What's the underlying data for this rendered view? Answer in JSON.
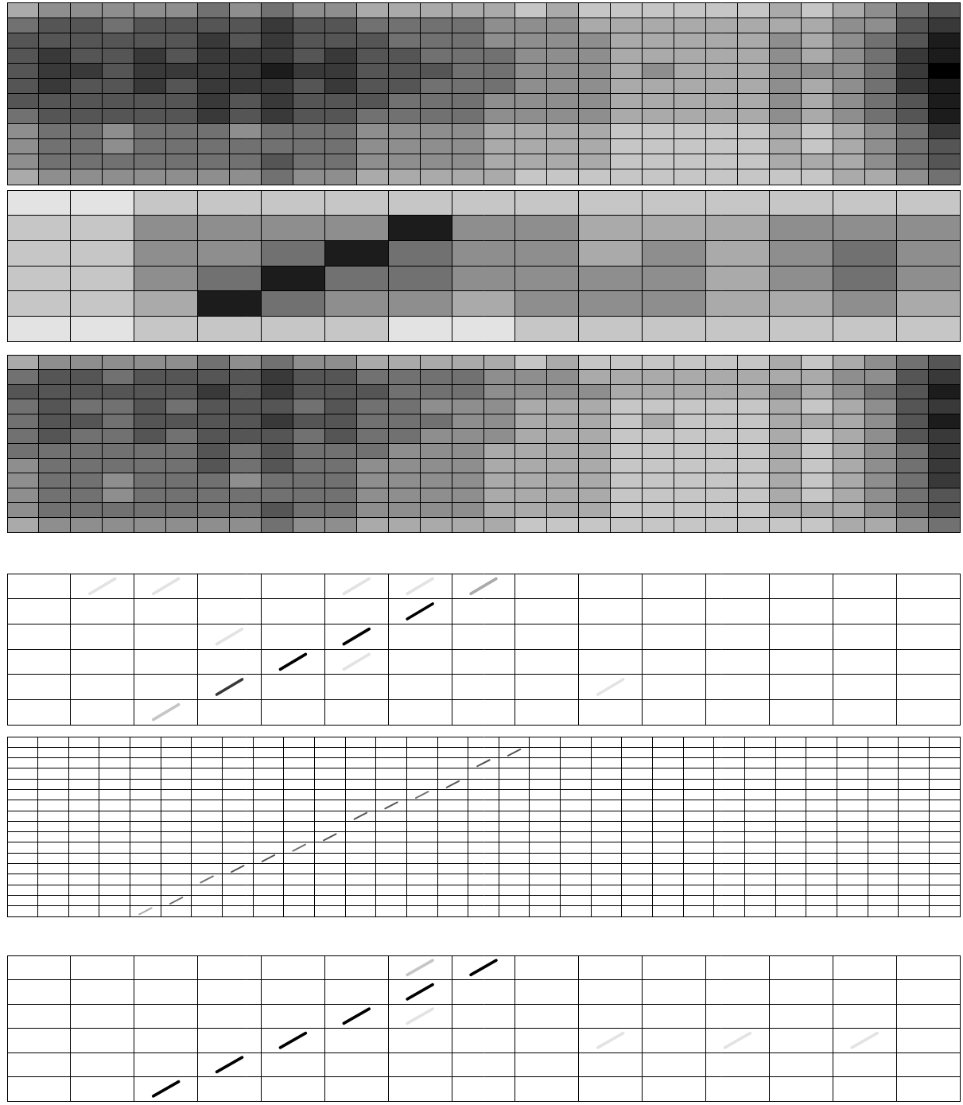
{
  "chart_data": [
    {
      "type": "heatmap",
      "marker": "square",
      "grid": true,
      "tick_labels": false,
      "color": "#000000",
      "color_range": [
        0,
        9
      ],
      "xlim": [
        0,
        30
      ],
      "xticks": [
        0,
        1,
        2,
        3,
        4,
        5,
        6,
        7,
        8,
        9,
        10,
        11,
        12,
        13,
        14,
        15,
        16,
        17,
        18,
        19,
        20,
        21,
        22,
        23,
        24,
        25,
        26,
        27,
        28,
        29,
        30
      ],
      "ylim": [
        0,
        12
      ],
      "yticks": [
        0,
        1,
        2,
        3,
        4,
        5,
        6,
        7,
        8,
        9,
        10,
        11,
        12
      ],
      "cells": [
        [
          3,
          4,
          4,
          4,
          4,
          4,
          5,
          4,
          5,
          4,
          4,
          3,
          3,
          3,
          3,
          3,
          2,
          3,
          2,
          2,
          2,
          2,
          2,
          2,
          3,
          2,
          3,
          4,
          5,
          6
        ],
        [
          5,
          6,
          6,
          5,
          6,
          6,
          6,
          6,
          7,
          6,
          6,
          5,
          5,
          5,
          5,
          4,
          4,
          4,
          3,
          3,
          3,
          3,
          3,
          3,
          3,
          3,
          4,
          4,
          6,
          7
        ],
        [
          6,
          6,
          6,
          6,
          6,
          6,
          7,
          6,
          7,
          6,
          6,
          6,
          5,
          5,
          5,
          4,
          4,
          4,
          4,
          3,
          3,
          3,
          3,
          3,
          4,
          3,
          4,
          5,
          6,
          8
        ],
        [
          6,
          7,
          6,
          6,
          7,
          6,
          7,
          7,
          7,
          6,
          7,
          6,
          6,
          5,
          5,
          5,
          4,
          4,
          4,
          3,
          3,
          3,
          3,
          3,
          4,
          3,
          4,
          5,
          7,
          8
        ],
        [
          6,
          7,
          7,
          6,
          7,
          7,
          7,
          7,
          8,
          7,
          7,
          6,
          6,
          6,
          5,
          5,
          4,
          4,
          4,
          3,
          4,
          3,
          3,
          3,
          4,
          4,
          4,
          5,
          7,
          9
        ],
        [
          6,
          7,
          6,
          6,
          7,
          6,
          7,
          7,
          7,
          6,
          7,
          6,
          6,
          5,
          5,
          5,
          4,
          4,
          4,
          3,
          3,
          3,
          3,
          3,
          4,
          3,
          4,
          5,
          7,
          8
        ],
        [
          6,
          6,
          6,
          6,
          6,
          6,
          7,
          6,
          7,
          6,
          6,
          6,
          5,
          5,
          5,
          4,
          4,
          4,
          4,
          3,
          3,
          3,
          3,
          3,
          4,
          3,
          4,
          5,
          6,
          8
        ],
        [
          5,
          6,
          6,
          6,
          6,
          6,
          7,
          6,
          7,
          6,
          6,
          5,
          5,
          5,
          5,
          4,
          4,
          4,
          4,
          3,
          3,
          3,
          3,
          3,
          4,
          3,
          4,
          5,
          6,
          8
        ],
        [
          4,
          5,
          5,
          4,
          5,
          5,
          5,
          4,
          5,
          5,
          5,
          4,
          4,
          4,
          4,
          3,
          3,
          3,
          3,
          2,
          2,
          2,
          2,
          2,
          3,
          2,
          3,
          4,
          5,
          7
        ],
        [
          4,
          5,
          5,
          4,
          5,
          5,
          5,
          5,
          5,
          5,
          5,
          4,
          4,
          4,
          4,
          3,
          3,
          3,
          3,
          2,
          2,
          2,
          2,
          2,
          3,
          2,
          3,
          4,
          5,
          6
        ],
        [
          4,
          5,
          5,
          5,
          5,
          5,
          5,
          5,
          6,
          5,
          5,
          4,
          4,
          4,
          4,
          3,
          3,
          3,
          3,
          2,
          2,
          2,
          2,
          2,
          3,
          3,
          3,
          4,
          5,
          6
        ],
        [
          3,
          4,
          4,
          4,
          4,
          4,
          4,
          4,
          5,
          4,
          4,
          3,
          3,
          3,
          3,
          3,
          2,
          2,
          2,
          2,
          2,
          2,
          2,
          2,
          2,
          2,
          3,
          3,
          4,
          5
        ]
      ]
    },
    {
      "type": "heatmap",
      "marker": "square",
      "grid": true,
      "tick_labels": false,
      "color": "#000000",
      "color_range": [
        0,
        9
      ],
      "xlim": [
        0,
        15
      ],
      "xticks": [
        0,
        1,
        2,
        3,
        4,
        5,
        6,
        7,
        8,
        9,
        10,
        11,
        12,
        13,
        14,
        15
      ],
      "ylim": [
        0,
        6
      ],
      "yticks": [
        0,
        1,
        2,
        3,
        4,
        5,
        6
      ],
      "cells": [
        [
          1,
          1,
          2,
          2,
          2,
          2,
          2,
          2,
          2,
          2,
          2,
          2,
          2,
          2,
          2
        ],
        [
          2,
          2,
          4,
          4,
          4,
          4,
          8,
          4,
          4,
          3,
          3,
          3,
          4,
          4,
          4
        ],
        [
          2,
          2,
          4,
          4,
          5,
          8,
          5,
          4,
          4,
          3,
          4,
          3,
          4,
          5,
          4
        ],
        [
          2,
          2,
          4,
          5,
          8,
          5,
          5,
          4,
          4,
          4,
          4,
          3,
          4,
          5,
          4
        ],
        [
          2,
          2,
          3,
          8,
          5,
          4,
          4,
          3,
          4,
          4,
          4,
          3,
          3,
          4,
          3
        ],
        [
          1,
          1,
          2,
          2,
          2,
          2,
          1,
          1,
          2,
          2,
          2,
          2,
          2,
          2,
          2
        ]
      ]
    },
    {
      "type": "heatmap",
      "marker": "square",
      "grid": true,
      "tick_labels": false,
      "color": "#000000",
      "color_range": [
        0,
        9
      ],
      "xlim": [
        0,
        30
      ],
      "xticks": [
        0,
        1,
        2,
        3,
        4,
        5,
        6,
        7,
        8,
        9,
        10,
        11,
        12,
        13,
        14,
        15,
        16,
        17,
        18,
        19,
        20,
        21,
        22,
        23,
        24,
        25,
        26,
        27,
        28,
        29,
        30
      ],
      "ylim": [
        0,
        12
      ],
      "yticks": [
        0,
        1,
        2,
        3,
        4,
        5,
        6,
        7,
        8,
        9,
        10,
        11,
        12
      ],
      "cells": [
        [
          3,
          4,
          4,
          4,
          4,
          4,
          5,
          4,
          5,
          4,
          4,
          3,
          3,
          3,
          3,
          3,
          2,
          3,
          2,
          2,
          2,
          2,
          2,
          2,
          3,
          2,
          3,
          4,
          5,
          6
        ],
        [
          5,
          6,
          6,
          5,
          6,
          6,
          6,
          6,
          7,
          6,
          6,
          5,
          5,
          5,
          5,
          4,
          4,
          4,
          3,
          3,
          3,
          3,
          3,
          3,
          3,
          3,
          4,
          4,
          6,
          7
        ],
        [
          6,
          6,
          6,
          6,
          6,
          6,
          7,
          6,
          7,
          6,
          6,
          6,
          5,
          5,
          5,
          4,
          4,
          4,
          4,
          3,
          3,
          3,
          3,
          3,
          4,
          3,
          4,
          5,
          6,
          8
        ],
        [
          5,
          6,
          5,
          5,
          6,
          5,
          6,
          6,
          6,
          5,
          6,
          5,
          5,
          4,
          4,
          4,
          3,
          3,
          3,
          2,
          2,
          2,
          2,
          2,
          3,
          2,
          3,
          4,
          6,
          7
        ],
        [
          5,
          6,
          6,
          5,
          6,
          6,
          6,
          6,
          7,
          6,
          6,
          5,
          5,
          5,
          4,
          4,
          3,
          3,
          3,
          2,
          3,
          2,
          2,
          2,
          3,
          3,
          3,
          4,
          6,
          8
        ],
        [
          5,
          6,
          5,
          5,
          6,
          5,
          6,
          6,
          6,
          5,
          6,
          5,
          5,
          4,
          4,
          4,
          3,
          3,
          3,
          2,
          2,
          2,
          2,
          2,
          3,
          2,
          3,
          4,
          6,
          7
        ],
        [
          5,
          5,
          5,
          5,
          5,
          5,
          6,
          5,
          6,
          5,
          5,
          5,
          4,
          4,
          4,
          3,
          3,
          3,
          3,
          2,
          2,
          2,
          2,
          2,
          3,
          2,
          3,
          4,
          5,
          7
        ],
        [
          4,
          5,
          5,
          5,
          5,
          5,
          6,
          5,
          6,
          5,
          5,
          4,
          4,
          4,
          4,
          3,
          3,
          3,
          3,
          2,
          2,
          2,
          2,
          2,
          3,
          2,
          3,
          4,
          5,
          7
        ],
        [
          4,
          5,
          5,
          4,
          5,
          5,
          5,
          4,
          5,
          5,
          5,
          4,
          4,
          4,
          4,
          3,
          3,
          3,
          3,
          2,
          2,
          2,
          2,
          2,
          3,
          2,
          3,
          4,
          5,
          7
        ],
        [
          4,
          5,
          5,
          4,
          5,
          5,
          5,
          5,
          5,
          5,
          5,
          4,
          4,
          4,
          4,
          3,
          3,
          3,
          3,
          2,
          2,
          2,
          2,
          2,
          3,
          2,
          3,
          4,
          5,
          6
        ],
        [
          4,
          5,
          5,
          5,
          5,
          5,
          5,
          5,
          6,
          5,
          5,
          4,
          4,
          4,
          4,
          3,
          3,
          3,
          3,
          2,
          2,
          2,
          2,
          2,
          3,
          3,
          3,
          4,
          5,
          6
        ],
        [
          3,
          4,
          4,
          4,
          4,
          4,
          4,
          4,
          5,
          4,
          4,
          3,
          3,
          3,
          3,
          3,
          2,
          2,
          2,
          2,
          2,
          2,
          2,
          2,
          2,
          2,
          3,
          3,
          4,
          5
        ]
      ]
    },
    {
      "type": "heatmap",
      "marker": "diagonal",
      "grid": true,
      "tick_labels": false,
      "color": "#000000",
      "color_range": [
        0,
        9
      ],
      "xlim": [
        0,
        15
      ],
      "xticks": [
        0,
        1,
        2,
        3,
        4,
        5,
        6,
        7,
        8,
        9,
        10,
        11,
        12,
        13,
        14,
        15
      ],
      "ylim": [
        0,
        6
      ],
      "yticks": [
        0,
        1,
        2,
        3,
        4,
        5,
        6
      ],
      "cells": [
        [
          7,
          0,
          3
        ],
        [
          6,
          1,
          9
        ],
        [
          5,
          2,
          9
        ],
        [
          4,
          3,
          9
        ],
        [
          3,
          4,
          7
        ],
        [
          2,
          5,
          2
        ],
        [
          1,
          0,
          1
        ],
        [
          2,
          0,
          1
        ],
        [
          5,
          0,
          1
        ],
        [
          6,
          0,
          1
        ],
        [
          3,
          2,
          1
        ],
        [
          5,
          3,
          1
        ],
        [
          9,
          4,
          1
        ]
      ]
    },
    {
      "type": "heatmap",
      "marker": "diagonal",
      "grid": true,
      "tick_labels": false,
      "color": "#000000",
      "color_range": [
        0,
        9
      ],
      "xlim": [
        0,
        31
      ],
      "xticks": [
        0,
        1,
        2,
        3,
        4,
        5,
        6,
        7,
        8,
        9,
        10,
        11,
        12,
        13,
        14,
        15,
        16,
        17,
        18,
        19,
        20,
        21,
        22,
        23,
        24,
        25,
        26,
        27,
        28,
        29,
        30,
        31
      ],
      "ylim": [
        0,
        17
      ],
      "yticks": [
        0,
        1,
        2,
        3,
        4,
        5,
        6,
        7,
        8,
        9,
        10,
        11,
        12,
        13,
        14,
        15,
        16,
        17
      ],
      "cells": [
        [
          16,
          1,
          6
        ],
        [
          15,
          2,
          6
        ],
        [
          14,
          4,
          6
        ],
        [
          13,
          5,
          5
        ],
        [
          12,
          6,
          6
        ],
        [
          11,
          7,
          6
        ],
        [
          10,
          9,
          6
        ],
        [
          9,
          10,
          5
        ],
        [
          8,
          11,
          6
        ],
        [
          7,
          12,
          6
        ],
        [
          6,
          13,
          5
        ],
        [
          5,
          15,
          5
        ],
        [
          4,
          16,
          3
        ]
      ]
    },
    {
      "type": "heatmap",
      "marker": "diagonal",
      "grid": true,
      "tick_labels": false,
      "color": "#000000",
      "color_range": [
        0,
        9
      ],
      "xlim": [
        0,
        15
      ],
      "xticks": [
        0,
        1,
        2,
        3,
        4,
        5,
        6,
        7,
        8,
        9,
        10,
        11,
        12,
        13,
        14,
        15
      ],
      "ylim": [
        0,
        6
      ],
      "yticks": [
        0,
        1,
        2,
        3,
        4,
        5,
        6
      ],
      "cells": [
        [
          7,
          0,
          9
        ],
        [
          6,
          1,
          9
        ],
        [
          5,
          2,
          9
        ],
        [
          4,
          3,
          9
        ],
        [
          3,
          4,
          9
        ],
        [
          2,
          5,
          9
        ],
        [
          6,
          0,
          2
        ],
        [
          6,
          2,
          1
        ],
        [
          9,
          3,
          1
        ],
        [
          11,
          3,
          1
        ],
        [
          13,
          3,
          1
        ]
      ]
    }
  ]
}
